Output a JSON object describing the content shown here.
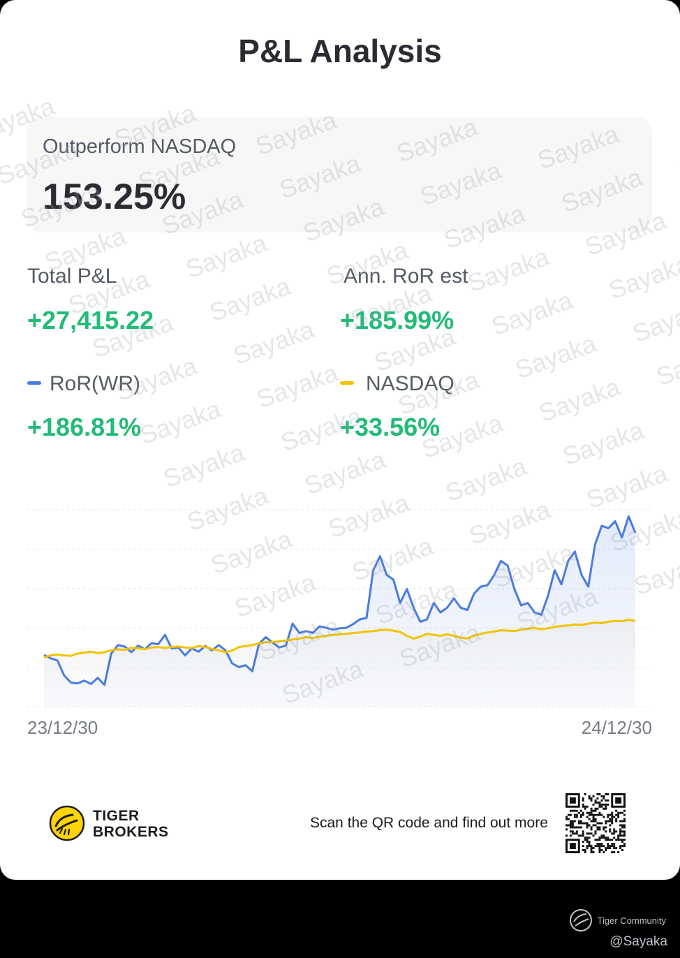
{
  "title": "P&L Analysis",
  "outperform": {
    "label": "Outperform NASDAQ",
    "value": "153.25%"
  },
  "stats": {
    "total_pl": {
      "label": "Total P&L",
      "value": "+27,415.22"
    },
    "ann_ror": {
      "label": "Ann. RoR est",
      "value": "+185.99%"
    },
    "ror_wr": {
      "label": "RoR(WR)",
      "value": "+186.81%",
      "color": "#4a7be0"
    },
    "nasdaq": {
      "label": "NASDAQ",
      "value": "+33.56%",
      "color": "#f2c300"
    }
  },
  "chart_data": {
    "type": "line",
    "x_start": "23/12/30",
    "x_end": "24/12/30",
    "grid": true,
    "series": [
      {
        "name": "RoR(WR)",
        "color": "#4a7be0",
        "values": [
          0.9,
          0.2,
          -0.3,
          -3.5,
          -5.0,
          -5.2,
          -4.6,
          -5.3,
          -4.0,
          -5.5,
          1.2,
          3.0,
          2.7,
          1.5,
          2.9,
          2.1,
          3.4,
          3.2,
          5.2,
          2.3,
          2.5,
          0.8,
          2.3,
          1.6,
          2.8,
          1.9,
          3.0,
          1.9,
          -0.9,
          -1.7,
          -1.3,
          -2.6,
          3.3,
          4.7,
          3.6,
          2.5,
          2.9,
          7.6,
          5.6,
          6.0,
          5.6,
          7.0,
          6.7,
          6.3,
          6.6,
          6.7,
          7.5,
          8.5,
          8.8,
          19.0,
          22.0,
          18.0,
          17.0,
          12.0,
          15.0,
          11.0,
          8.0,
          8.5,
          12.0,
          10.0,
          11.0,
          13.0,
          11.0,
          10.5,
          14.0,
          15.5,
          15.8,
          18.0,
          21.0,
          20.0,
          15.0,
          11.5,
          12.0,
          10.0,
          9.5,
          13.5,
          19.0,
          16.0,
          21.0,
          23.0,
          18.0,
          15.5,
          24.5,
          28.5,
          28.0,
          29.5,
          26.0,
          30.5,
          27.0
        ]
      },
      {
        "name": "NASDAQ",
        "color": "#f2c300",
        "values": [
          0.4,
          0.8,
          1.0,
          0.8,
          0.7,
          1.2,
          1.4,
          1.6,
          1.3,
          1.5,
          1.9,
          2.1,
          2.0,
          2.4,
          2.3,
          2.1,
          2.5,
          2.6,
          2.4,
          2.6,
          2.7,
          2.5,
          2.4,
          2.8,
          2.6,
          2.2,
          1.9,
          1.5,
          1.8,
          2.6,
          2.8,
          3.0,
          3.4,
          3.6,
          3.7,
          3.8,
          4.0,
          4.2,
          4.4,
          4.7,
          4.5,
          4.8,
          5.0,
          5.2,
          5.3,
          5.4,
          5.6,
          5.7,
          5.9,
          6.0,
          6.2,
          6.3,
          6.1,
          5.8,
          5.0,
          4.4,
          4.8,
          5.4,
          5.2,
          5.0,
          5.3,
          5.0,
          4.6,
          4.4,
          5.0,
          5.4,
          5.7,
          5.9,
          6.2,
          6.1,
          6.0,
          6.3,
          6.5,
          6.7,
          6.4,
          6.6,
          6.9,
          7.1,
          7.2,
          7.4,
          7.3,
          7.6,
          7.8,
          7.7,
          8.0,
          8.2,
          8.1,
          8.4,
          8.2
        ]
      }
    ],
    "ylim": [
      -8,
      34
    ]
  },
  "footer": {
    "brand_line1": "TIGER",
    "brand_line2": "BROKERS",
    "scan_text": "Scan the QR code and find out more",
    "community": "Tiger Community",
    "handle": "@Sayaka",
    "watermark": "Sayaka"
  }
}
